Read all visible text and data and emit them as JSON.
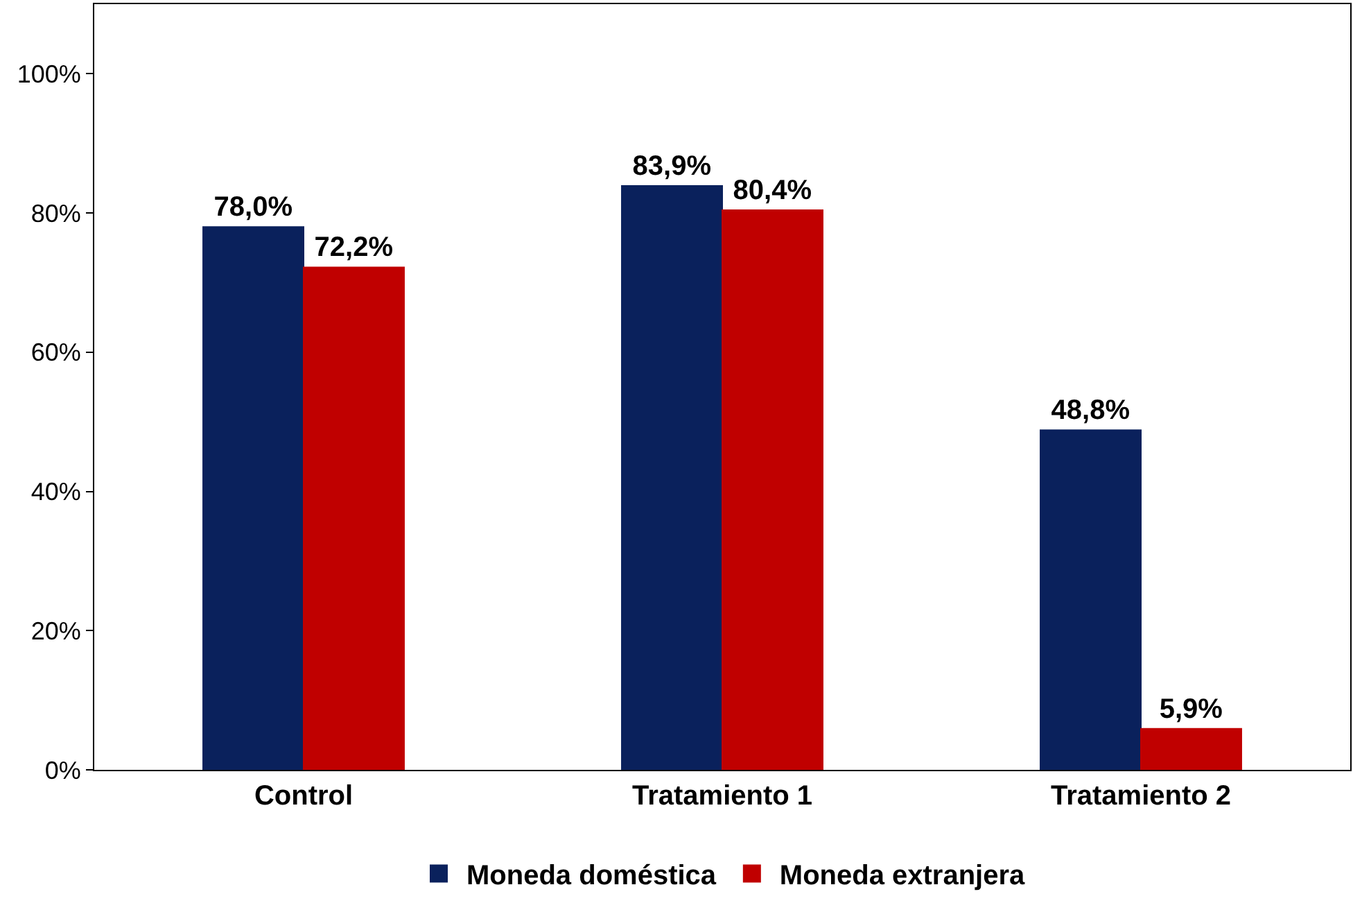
{
  "chart_data": {
    "type": "bar",
    "categories": [
      "Control",
      "Tratamiento 1",
      "Tratamiento 2"
    ],
    "series": [
      {
        "name": "Moneda doméstica",
        "color": "#0a215c",
        "values": [
          78.0,
          83.9,
          48.8
        ],
        "value_labels": [
          "78,0%",
          "83,9%",
          "48,8%"
        ]
      },
      {
        "name": "Moneda extranjera",
        "color": "#c00000",
        "values": [
          72.2,
          80.4,
          5.9
        ],
        "value_labels": [
          "72,2%",
          "80,4%",
          "5,9%"
        ]
      }
    ],
    "ylim": [
      0,
      110
    ],
    "yticks": [
      {
        "value": 0,
        "label": "0%"
      },
      {
        "value": 20,
        "label": "20%"
      },
      {
        "value": 40,
        "label": "40%"
      },
      {
        "value": 60,
        "label": "60%"
      },
      {
        "value": 80,
        "label": "80%"
      },
      {
        "value": 100,
        "label": "100%"
      }
    ],
    "legend": "bottom"
  }
}
